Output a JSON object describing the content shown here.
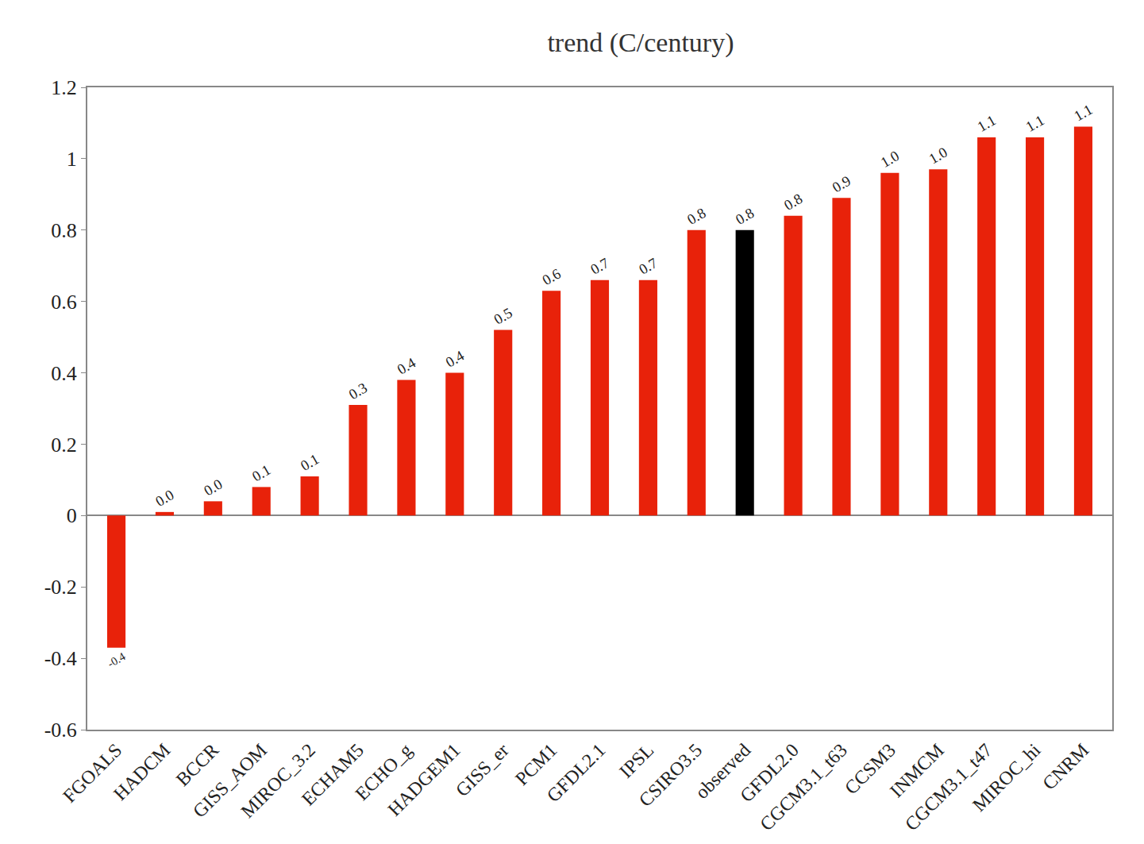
{
  "chart_data": {
    "type": "bar",
    "title": "trend (C/century)",
    "categories": [
      "FGOALS",
      "HADCM",
      "BCCR",
      "GISS_AOM",
      "MIROC_3.2",
      "ECHAM5",
      "ECHO_g",
      "HADGEM1",
      "GISS_er",
      "PCM1",
      "GFDL2.1",
      "IPSL",
      "CSIRO3.5",
      "observed",
      "GFDL2.0",
      "CGCM3.1_t63",
      "CCSM3",
      "INMCM",
      "CGCM3.1_t47",
      "MIROC_hi",
      "CNRM"
    ],
    "values": [
      -0.37,
      0.01,
      0.04,
      0.08,
      0.11,
      0.31,
      0.38,
      0.4,
      0.52,
      0.63,
      0.66,
      0.66,
      0.8,
      0.8,
      0.84,
      0.89,
      0.96,
      0.97,
      1.06,
      1.06,
      1.09
    ],
    "value_labels": [
      "-0.4",
      "0.0",
      "0.0",
      "0.1",
      "0.1",
      "0.3",
      "0.4",
      "0.4",
      "0.5",
      "0.6",
      "0.7",
      "0.7",
      "0.8",
      "0.8",
      "0.8",
      "0.9",
      "1.0",
      "1.0",
      "1.1",
      "1.1",
      "1.1"
    ],
    "colors": [
      "#e8220a",
      "#e8220a",
      "#e8220a",
      "#e8220a",
      "#e8220a",
      "#e8220a",
      "#e8220a",
      "#e8220a",
      "#e8220a",
      "#e8220a",
      "#e8220a",
      "#e8220a",
      "#e8220a",
      "#000000",
      "#e8220a",
      "#e8220a",
      "#e8220a",
      "#e8220a",
      "#e8220a",
      "#e8220a",
      "#e8220a"
    ],
    "ylim": [
      -0.6,
      1.2
    ],
    "yticks": [
      -0.6,
      -0.4,
      -0.2,
      0,
      0.2,
      0.4,
      0.6,
      0.8,
      1,
      1.2
    ],
    "grid": false,
    "data_labels": true
  }
}
